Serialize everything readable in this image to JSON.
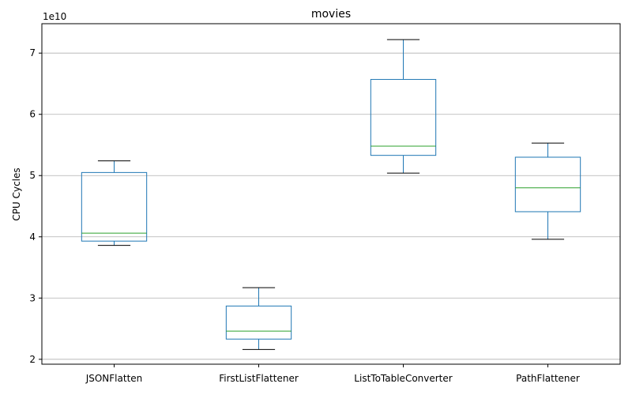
{
  "chart_data": {
    "type": "box",
    "title": "movies",
    "xlabel": "",
    "ylabel": "CPU Cycles",
    "y_scale_label": "1e10",
    "ylim": [
      1.92,
      7.48
    ],
    "yticks": [
      2,
      3,
      4,
      5,
      6,
      7
    ],
    "grid": "horizontal",
    "colors": {
      "box": "#1f77b4",
      "median": "#2ca02c",
      "whisker_cap": "#000000",
      "grid": "#b0b0b0"
    },
    "categories": [
      "JSONFlatten",
      "FirstListFlattener",
      "ListToTableConverter",
      "PathFlattener"
    ],
    "boxes": [
      {
        "whislo": 3.86,
        "q1": 3.93,
        "med": 4.06,
        "q3": 5.05,
        "whishi": 5.24
      },
      {
        "whislo": 2.16,
        "q1": 2.33,
        "med": 2.46,
        "q3": 2.87,
        "whishi": 3.17
      },
      {
        "whislo": 5.04,
        "q1": 5.33,
        "med": 5.48,
        "q3": 6.57,
        "whishi": 7.22
      },
      {
        "whislo": 3.96,
        "q1": 4.41,
        "med": 4.8,
        "q3": 5.3,
        "whishi": 5.53
      }
    ]
  }
}
